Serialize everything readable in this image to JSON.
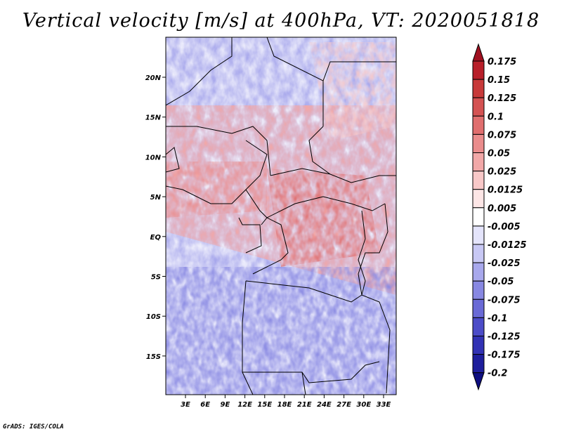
{
  "title": "Vertical velocity [m/s] at 400hPa, VT: 2020051818",
  "footer": "GrADS: IGES/COLA",
  "map": {
    "lat_ticks": [
      "20N",
      "15N",
      "10N",
      "5N",
      "EQ",
      "5S",
      "10S",
      "15S"
    ],
    "lon_ticks": [
      "3E",
      "6E",
      "9E",
      "12E",
      "15E",
      "18E",
      "21E",
      "24E",
      "27E",
      "30E",
      "33E"
    ]
  },
  "colorbar": {
    "labels": [
      "0.175",
      "0.15",
      "0.125",
      "0.1",
      "0.075",
      "0.05",
      "0.025",
      "0.0125",
      "0.005",
      "-0.005",
      "-0.0125",
      "-0.025",
      "-0.05",
      "-0.075",
      "-0.1",
      "-0.125",
      "-0.175",
      "-0.2"
    ],
    "colors": [
      "#a01020",
      "#b81f2a",
      "#c83a3a",
      "#d45252",
      "#e06e6e",
      "#ea8c8c",
      "#f2a8a8",
      "#f8c8c8",
      "#fde6e6",
      "#ffffff",
      "#e4e4fb",
      "#c8c8f4",
      "#a8a8ec",
      "#8888e2",
      "#6a6ad6",
      "#4c4cc8",
      "#3232b4",
      "#1e1e9c",
      "#0e0e80"
    ]
  }
}
